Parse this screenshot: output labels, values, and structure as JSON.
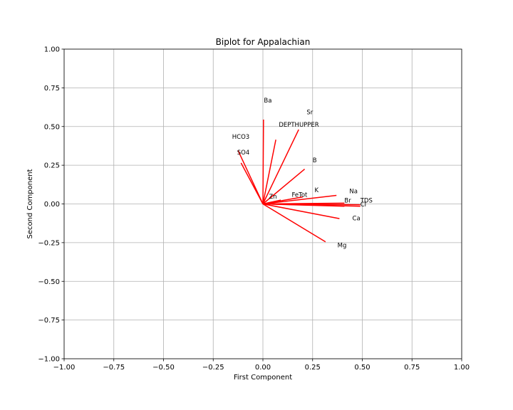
{
  "chart_data": {
    "type": "biplot",
    "title": "Biplot for Appalachian",
    "xlabel": "First Component",
    "ylabel": "Second Component",
    "xlim": [
      -1.0,
      1.0
    ],
    "ylim": [
      -1.0,
      1.0
    ],
    "grid": true,
    "line_color": "#ff0000",
    "x_ticks": [
      "−1.00",
      "−0.75",
      "−0.50",
      "−0.25",
      "0.00",
      "0.25",
      "0.50",
      "0.75",
      "1.00"
    ],
    "y_ticks": [
      "−1.00",
      "−0.75",
      "−0.50",
      "−0.25",
      "0.00",
      "0.25",
      "0.50",
      "0.75",
      "1.00"
    ],
    "x_tick_values": [
      -1.0,
      -0.75,
      -0.5,
      -0.25,
      0.0,
      0.25,
      0.5,
      0.75,
      1.0
    ],
    "y_tick_values": [
      -1.0,
      -0.75,
      -0.5,
      -0.25,
      0.0,
      0.25,
      0.5,
      0.75,
      1.0
    ],
    "vectors": [
      {
        "name": "Ba",
        "x": 0.003,
        "y": 0.545,
        "label_x": 0.005,
        "label_y": 0.655
      },
      {
        "name": "Sr",
        "x": 0.065,
        "y": 0.415,
        "label_x": 0.22,
        "label_y": 0.58
      },
      {
        "name": "DEPTHUPPER",
        "x": 0.18,
        "y": 0.48,
        "label_x": 0.08,
        "label_y": 0.5
      },
      {
        "name": "HCO3",
        "x": -0.125,
        "y": 0.345,
        "label_x": -0.155,
        "label_y": 0.42
      },
      {
        "name": "SO4",
        "x": -0.11,
        "y": 0.265,
        "label_x": -0.13,
        "label_y": 0.32
      },
      {
        "name": "B",
        "x": 0.21,
        "y": 0.225,
        "label_x": 0.25,
        "label_y": 0.27
      },
      {
        "name": "Zn",
        "x": 0.09,
        "y": 0.025,
        "label_x": 0.03,
        "label_y": 0.035
      },
      {
        "name": "FeTot",
        "x": 0.2,
        "y": 0.045,
        "label_x": 0.145,
        "label_y": 0.045
      },
      {
        "name": "K",
        "x": 0.37,
        "y": 0.055,
        "label_x": 0.26,
        "label_y": 0.075
      },
      {
        "name": "Na",
        "x": 0.41,
        "y": 0.005,
        "label_x": 0.435,
        "label_y": 0.07
      },
      {
        "name": "Br",
        "x": 0.41,
        "y": -0.015,
        "label_x": 0.41,
        "label_y": 0.01
      },
      {
        "name": "TDS",
        "x": 0.49,
        "y": -0.005,
        "label_x": 0.49,
        "label_y": 0.01
      },
      {
        "name": "Cl",
        "x": 0.49,
        "y": -0.015,
        "label_x": 0.49,
        "label_y": -0.015
      },
      {
        "name": "Ca",
        "x": 0.385,
        "y": -0.095,
        "label_x": 0.45,
        "label_y": -0.105
      },
      {
        "name": "Mg",
        "x": 0.315,
        "y": -0.245,
        "label_x": 0.375,
        "label_y": -0.28
      }
    ]
  }
}
